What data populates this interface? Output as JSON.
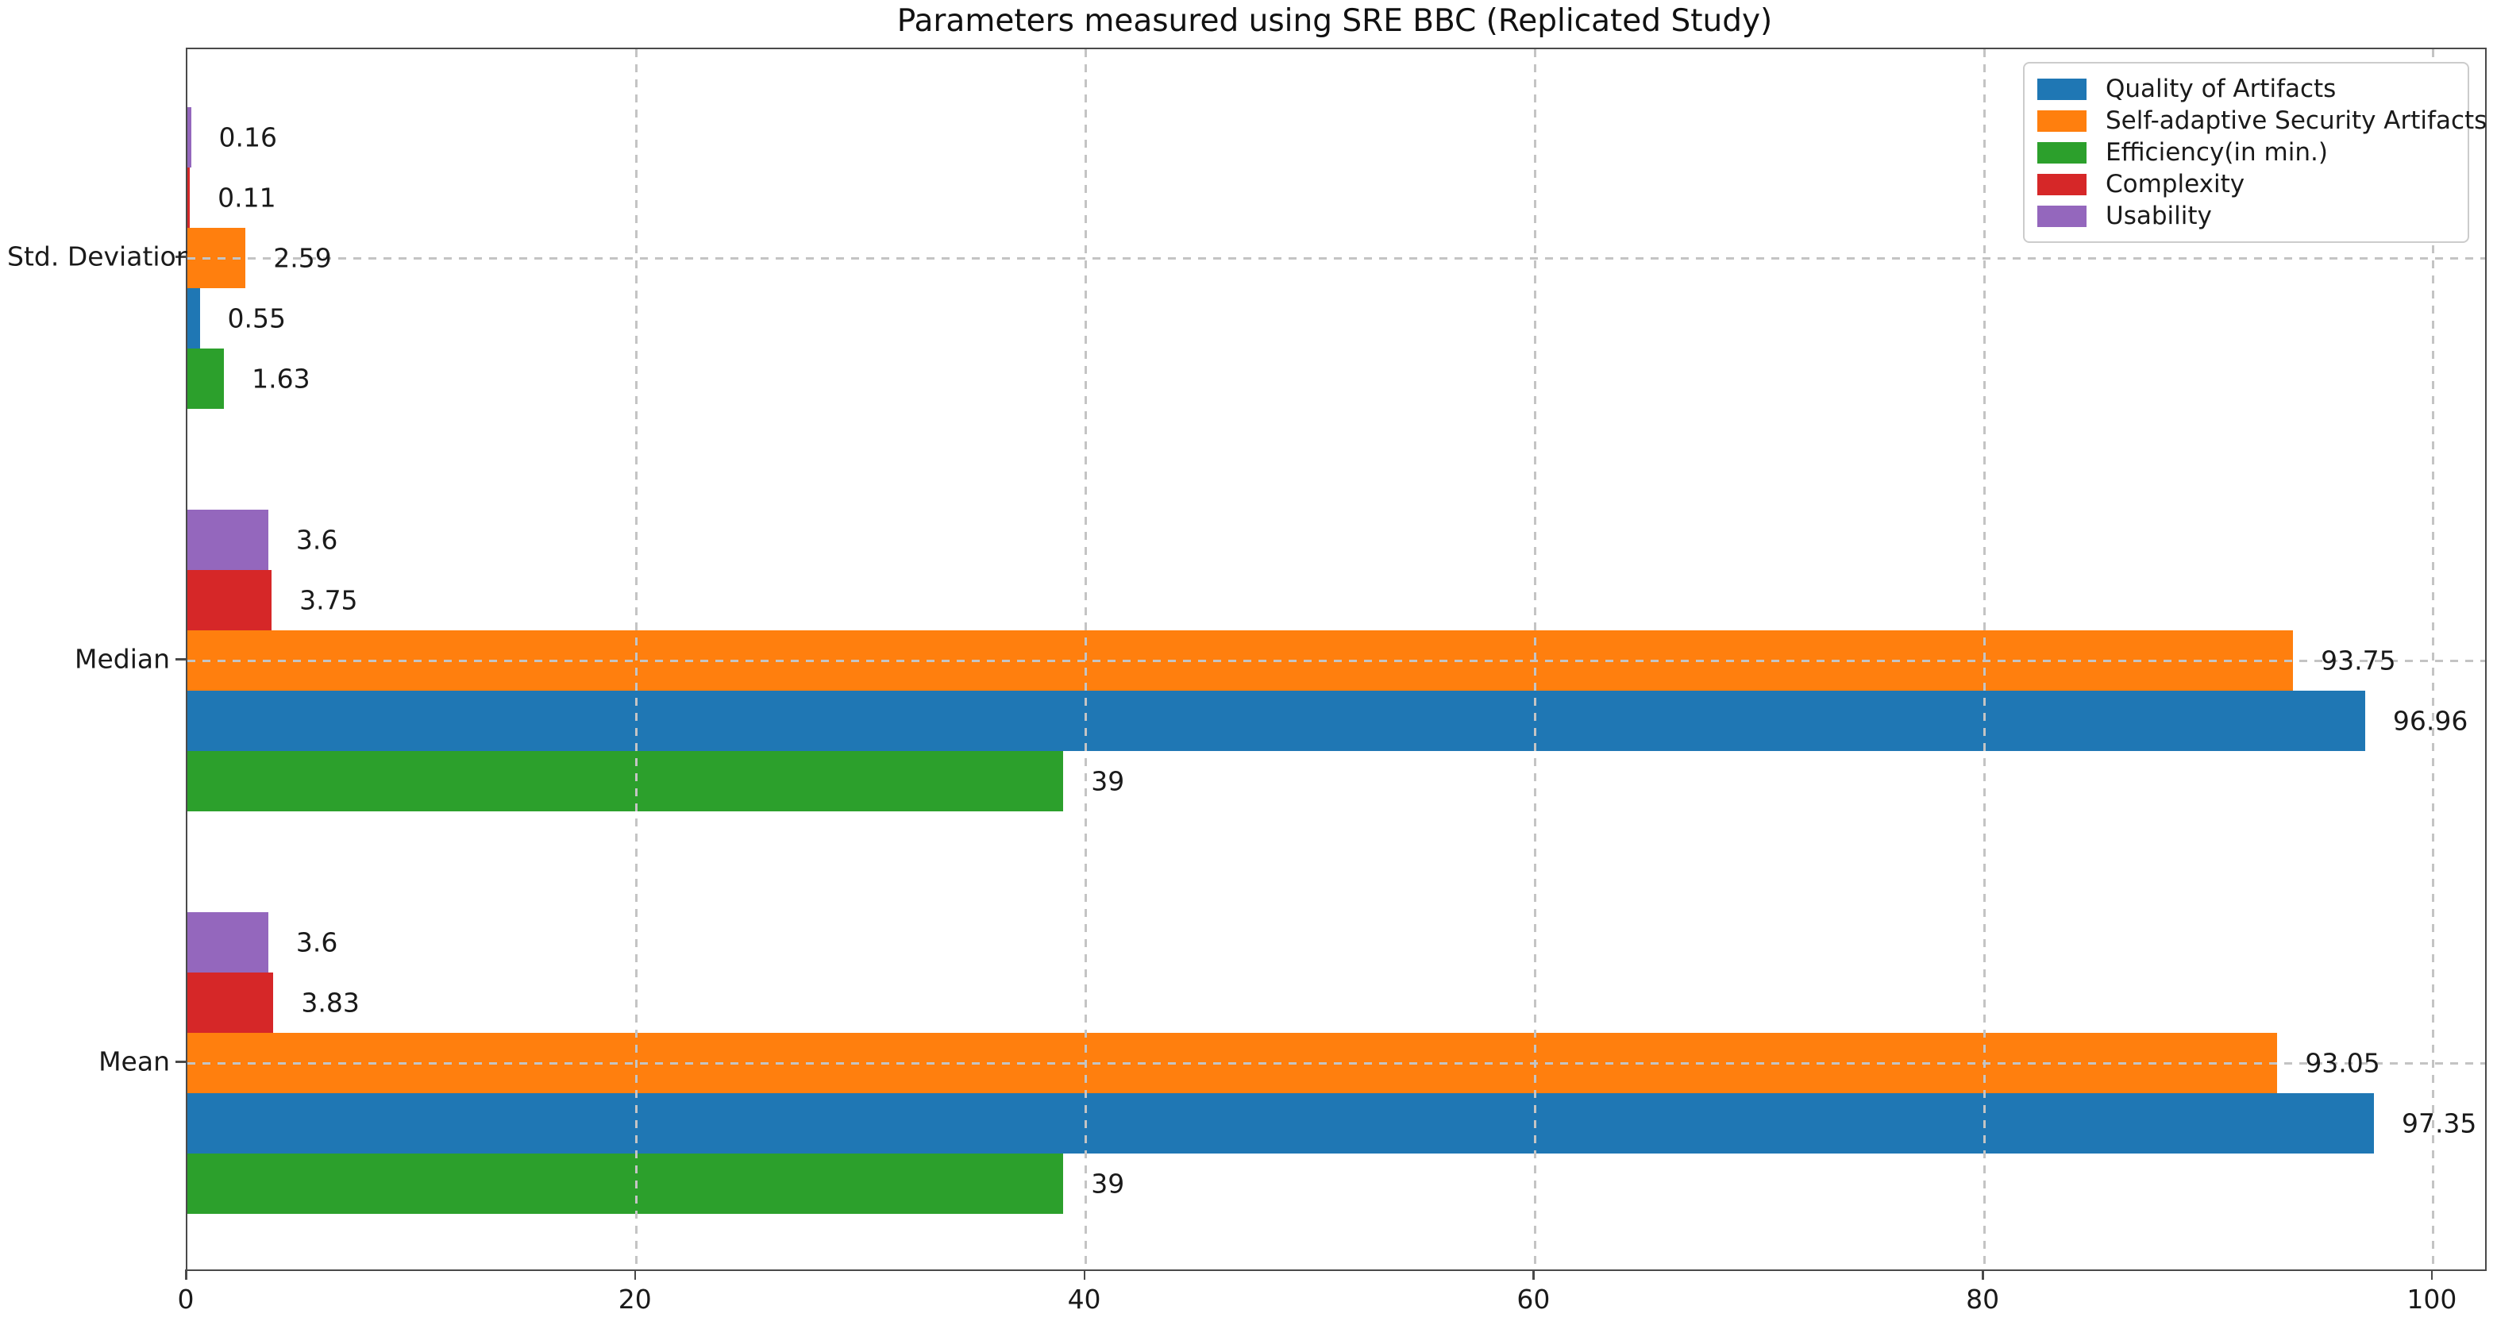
{
  "chart_data": {
    "type": "bar",
    "orientation": "horizontal",
    "title": "Parameters measured using SRE BBC (Replicated Study)",
    "categories": [
      "Mean",
      "Median",
      "Std. Deviation"
    ],
    "categories_order_note": "Mean is the bottom group, Std. Deviation the top group",
    "series": [
      {
        "name": "Quality of Artifacts",
        "color": "#1f77b4",
        "values": [
          97.35,
          96.96,
          0.55
        ],
        "labels": [
          "97.35",
          "96.96",
          "0.55"
        ]
      },
      {
        "name": "Self-adaptive Security Artifacts",
        "color": "#ff7f0e",
        "values": [
          93.05,
          93.75,
          2.59
        ],
        "labels": [
          "93.05",
          "93.75",
          "2.59"
        ]
      },
      {
        "name": "Efficiency(in min.)",
        "color": "#2ca02c",
        "values": [
          39,
          39,
          1.63
        ],
        "labels": [
          "39",
          "39",
          "1.63"
        ]
      },
      {
        "name": "Complexity",
        "color": "#d62728",
        "values": [
          3.83,
          3.75,
          0.11
        ],
        "labels": [
          "3.83",
          "3.75",
          "0.11"
        ]
      },
      {
        "name": "Usability",
        "color": "#9467bd",
        "values": [
          3.6,
          3.6,
          0.16
        ],
        "labels": [
          "3.6",
          "3.6",
          "0.16"
        ]
      }
    ],
    "bar_row_order_top_to_bottom": [
      "Usability",
      "Complexity",
      "Self-adaptive Security Artifacts",
      "Quality of Artifacts",
      "Efficiency(in min.)"
    ],
    "x_ticks": [
      0,
      20,
      40,
      60,
      80,
      100
    ],
    "xlim": [
      0,
      102.3
    ],
    "xlabel": "",
    "ylabel": "",
    "grid": {
      "axes": "both",
      "style": "dashed",
      "color": "#c4c4c4",
      "drawn_above_bars": true
    },
    "legend": {
      "position": "upper-right",
      "entries": [
        "Quality of Artifacts",
        "Self-adaptive Security Artifacts",
        "Efficiency(in min.)",
        "Complexity",
        "Usability"
      ]
    }
  }
}
